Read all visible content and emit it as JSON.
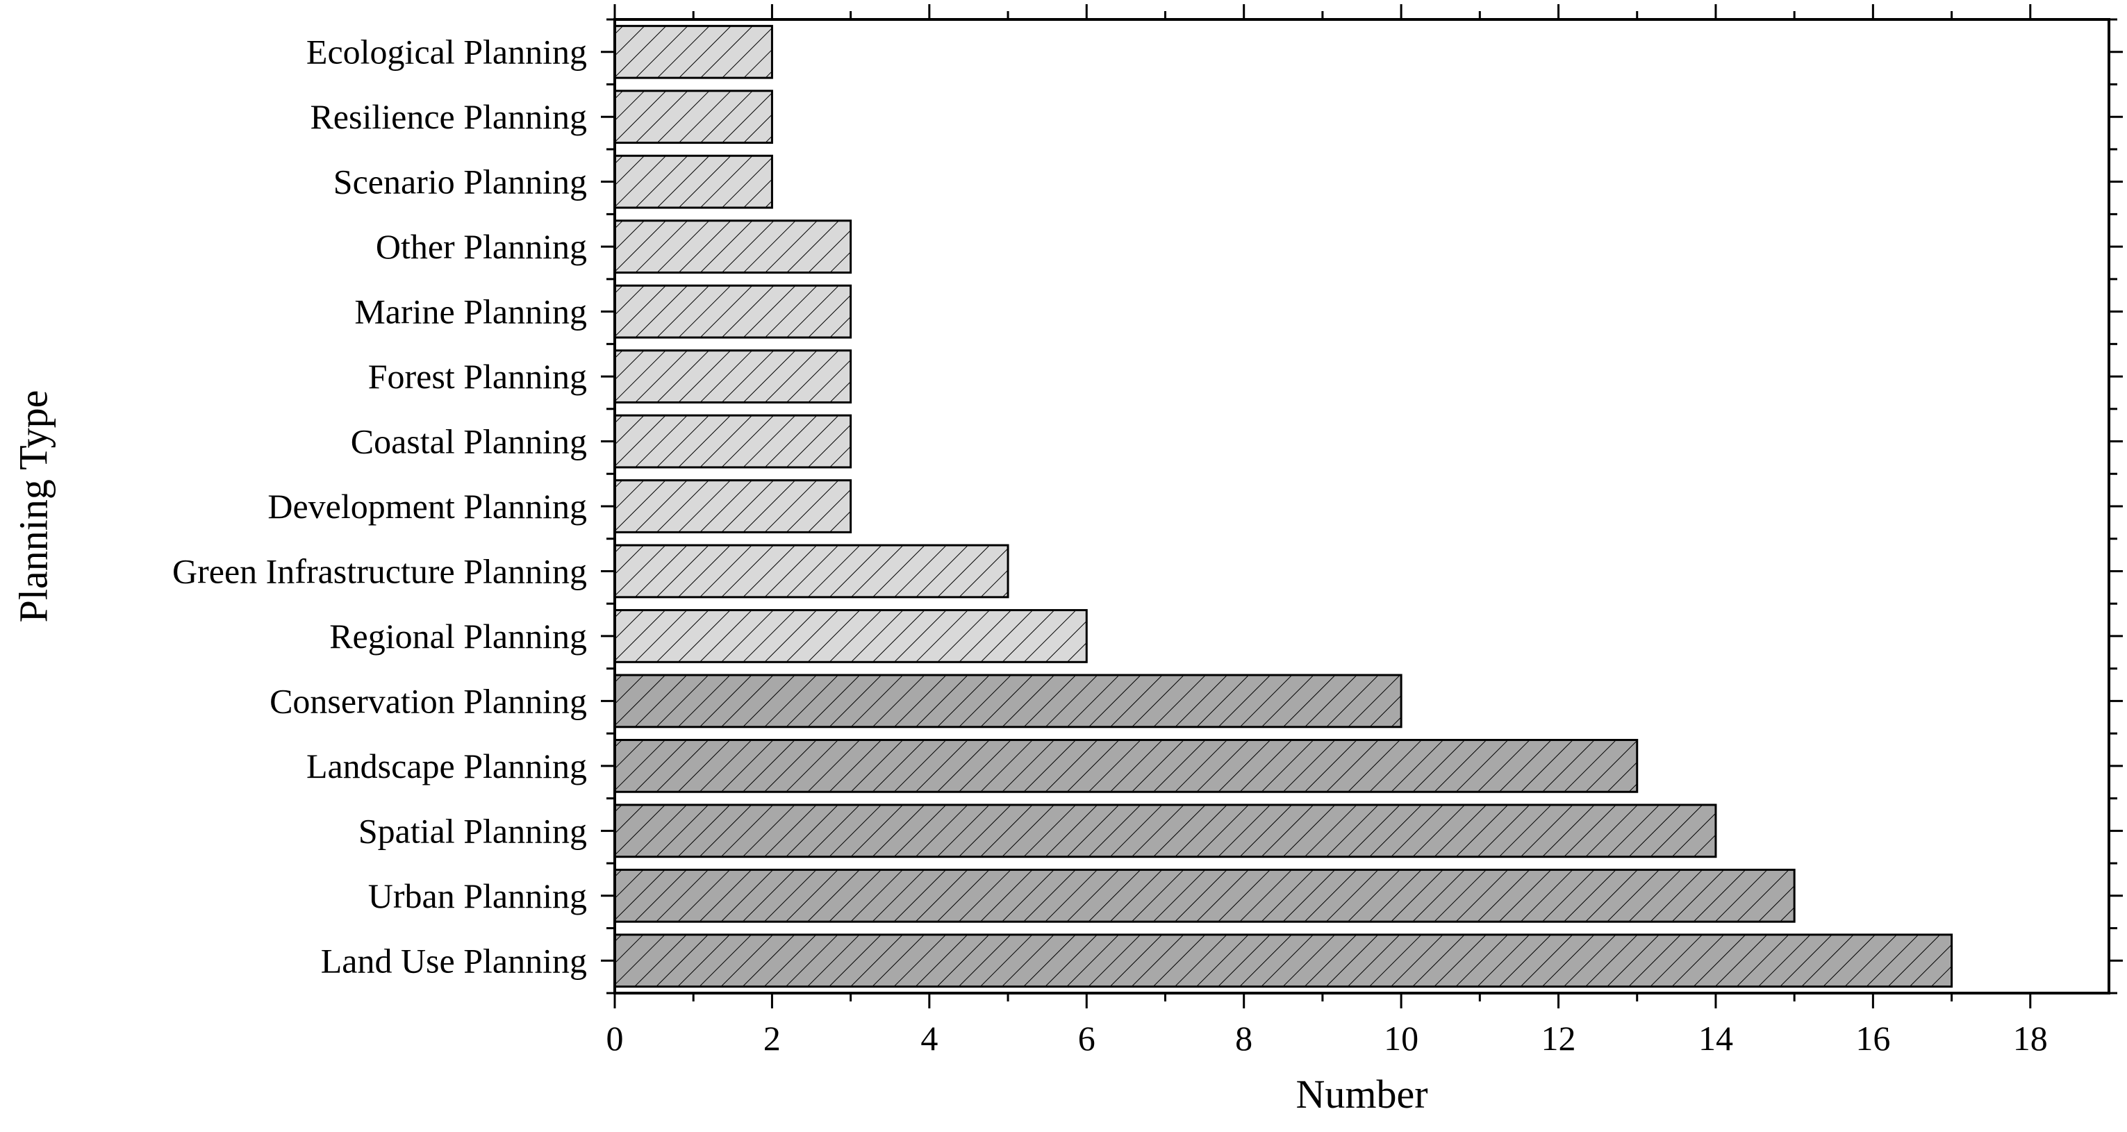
{
  "chart_data": {
    "type": "bar",
    "orientation": "horizontal",
    "xlabel": "Number",
    "ylabel": "Planning Type",
    "xlim": [
      0,
      19
    ],
    "xticks": [
      0,
      2,
      4,
      6,
      8,
      10,
      12,
      14,
      16,
      18
    ],
    "grid": false,
    "categories": [
      "Ecological Planning",
      "Resilience Planning",
      "Scenario Planning",
      "Other Planning",
      "Marine Planning",
      "Forest Planning",
      "Coastal Planning",
      "Development Planning",
      "Green Infrastructure Planning",
      "Regional Planning",
      "Conservation Planning",
      "Landscape Planning",
      "Spatial Planning",
      "Urban Planning",
      "Land Use Planning"
    ],
    "values": [
      2,
      2,
      2,
      3,
      3,
      3,
      3,
      3,
      5,
      6,
      10,
      13,
      14,
      15,
      17
    ],
    "bar_fill_light": "#d9d9d9",
    "bar_fill_dark": "#a8a8a8",
    "bar_hatch": "diagonal-backslash",
    "bar_stroke": "#000000"
  }
}
